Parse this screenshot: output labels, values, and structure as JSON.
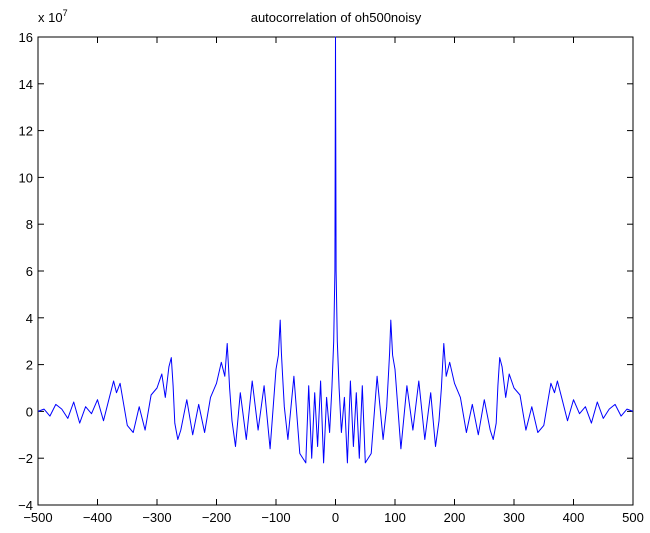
{
  "chart_data": {
    "type": "line",
    "title": "autocorrelation of oh500noisy",
    "xlabel": "",
    "ylabel": "",
    "y_scale_label": {
      "base": "x 10",
      "exponent": "7"
    },
    "xlim": [
      -500,
      500
    ],
    "ylim": [
      -4,
      16
    ],
    "x_ticks": [
      -500,
      -400,
      -300,
      -200,
      -100,
      0,
      100,
      200,
      300,
      400,
      500
    ],
    "x_tick_labels": [
      "−500",
      "−400",
      "−300",
      "−200",
      "−100",
      "0",
      "100",
      "200",
      "300",
      "400",
      "500"
    ],
    "y_ticks": [
      -4,
      -2,
      0,
      2,
      4,
      6,
      8,
      10,
      12,
      14,
      16
    ],
    "y_tick_labels": [
      "−4",
      "−2",
      "0",
      "2",
      "4",
      "6",
      "8",
      "10",
      "12",
      "14",
      "16"
    ],
    "grid": false,
    "line_color": "#0000ff",
    "series": [
      {
        "x": [
          -500,
          -490,
          -480,
          -470,
          -460,
          -450,
          -440,
          -430,
          -420,
          -410,
          -400,
          -390,
          -380,
          -373,
          -368,
          -362,
          -356,
          -350,
          -340,
          -330,
          -320,
          -310,
          -300,
          -292,
          -286,
          -280,
          -276,
          -273,
          -270,
          -265,
          -260,
          -250,
          -240,
          -230,
          -220,
          -210,
          -200,
          -192,
          -186,
          -182,
          -180,
          -178,
          -174,
          -168,
          -160,
          -150,
          -140,
          -130,
          -120,
          -110,
          -100,
          -96,
          -93,
          -91,
          -89,
          -86,
          -80,
          -70,
          -60,
          -50,
          -45,
          -40,
          -35,
          -30,
          -25,
          -20,
          -15,
          -10,
          -6,
          -3,
          -1,
          0,
          1,
          3,
          6,
          10,
          15,
          20,
          25,
          30,
          35,
          40,
          45,
          50,
          60,
          70,
          80,
          86,
          89,
          91,
          93,
          96,
          100,
          110,
          120,
          130,
          140,
          150,
          160,
          168,
          174,
          178,
          180,
          182,
          186,
          192,
          200,
          210,
          220,
          230,
          240,
          250,
          260,
          265,
          270,
          273,
          276,
          280,
          286,
          292,
          300,
          310,
          320,
          330,
          340,
          350,
          356,
          362,
          368,
          373,
          380,
          390,
          400,
          410,
          420,
          430,
          440,
          450,
          460,
          470,
          480,
          490,
          500
        ],
        "y": [
          0,
          0.1,
          -0.2,
          0.3,
          0.1,
          -0.3,
          0.4,
          -0.5,
          0.2,
          -0.1,
          0.5,
          -0.4,
          0.6,
          1.3,
          0.8,
          1.2,
          0.3,
          -0.6,
          -0.9,
          0.2,
          -0.8,
          0.7,
          1.0,
          1.6,
          0.6,
          1.9,
          2.3,
          1.1,
          -0.5,
          -1.2,
          -0.8,
          0.5,
          -1.0,
          0.3,
          -0.9,
          0.6,
          1.2,
          2.1,
          1.5,
          2.9,
          2.0,
          1.0,
          -0.4,
          -1.5,
          0.8,
          -1.2,
          1.3,
          -0.8,
          1.1,
          -1.6,
          1.8,
          2.4,
          3.9,
          2.5,
          1.6,
          0.2,
          -1.2,
          1.5,
          -1.8,
          -2.2,
          1.1,
          -2.0,
          0.8,
          -1.5,
          1.3,
          -2.2,
          0.6,
          -0.9,
          1.0,
          3.0,
          6.0,
          16.0,
          6.0,
          3.0,
          1.0,
          -0.9,
          0.6,
          -2.2,
          1.3,
          -1.5,
          0.8,
          -2.0,
          1.1,
          -2.2,
          -1.8,
          1.5,
          -1.2,
          0.2,
          1.6,
          2.5,
          3.9,
          2.4,
          1.8,
          -1.6,
          1.1,
          -0.8,
          1.3,
          -1.2,
          0.8,
          -1.5,
          -0.4,
          1.0,
          2.0,
          2.9,
          1.5,
          2.1,
          1.2,
          0.6,
          -0.9,
          0.3,
          -1.0,
          0.5,
          -0.8,
          -1.2,
          -0.5,
          1.1,
          2.3,
          1.9,
          0.6,
          1.6,
          1.0,
          0.7,
          -0.8,
          0.2,
          -0.9,
          -0.6,
          0.3,
          1.2,
          0.8,
          1.3,
          0.6,
          -0.4,
          0.5,
          -0.1,
          0.2,
          -0.5,
          0.4,
          -0.3,
          0.1,
          0.3,
          -0.2,
          0.1,
          0
        ]
      }
    ]
  }
}
